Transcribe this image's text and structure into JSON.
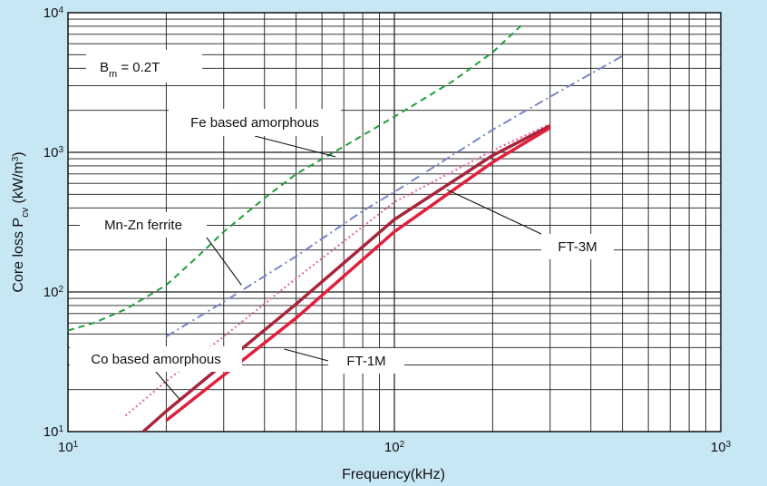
{
  "chart_data": {
    "type": "line",
    "x_scale": "log",
    "y_scale": "log",
    "xlim": [
      10,
      1000
    ],
    "ylim": [
      10,
      10000
    ],
    "grid": true,
    "legend": "none",
    "xlabel": "Frequency(kHz)",
    "ylabel": {
      "main": "Core loss P",
      "sub": "cv",
      "unit_open": " (kW/m",
      "unit_sup": "3",
      "unit_close": ")"
    },
    "x_ticks": [
      {
        "base": "10",
        "exp": "1",
        "value": 10
      },
      {
        "base": "10",
        "exp": "2",
        "value": 100
      },
      {
        "base": "10",
        "exp": "3",
        "value": 1000
      }
    ],
    "y_ticks": [
      {
        "base": "10",
        "exp": "1",
        "value": 10
      },
      {
        "base": "10",
        "exp": "2",
        "value": 100
      },
      {
        "base": "10",
        "exp": "3",
        "value": 1000
      },
      {
        "base": "10",
        "exp": "4",
        "value": 10000
      }
    ],
    "condition": {
      "main": "B",
      "sub": "m",
      "rest": " = 0.2T"
    },
    "series": [
      {
        "name": "Fe based amorphous",
        "style": "dashed",
        "color": "#1f9e3a",
        "width": 2,
        "points": [
          [
            10,
            53
          ],
          [
            12,
            60
          ],
          [
            15,
            75
          ],
          [
            20,
            112
          ],
          [
            25,
            180
          ],
          [
            30,
            270
          ],
          [
            40,
            470
          ],
          [
            50,
            700
          ],
          [
            70,
            1100
          ],
          [
            100,
            1800
          ],
          [
            150,
            3200
          ],
          [
            200,
            5200
          ],
          [
            250,
            8500
          ]
        ]
      },
      {
        "name": "Mn-Zn ferrite",
        "style": "dashdot",
        "color": "#7b86c6",
        "width": 2,
        "points": [
          [
            20,
            48
          ],
          [
            30,
            85
          ],
          [
            50,
            180
          ],
          [
            80,
            380
          ],
          [
            100,
            520
          ],
          [
            200,
            1450
          ],
          [
            300,
            2500
          ],
          [
            500,
            4900
          ]
        ]
      },
      {
        "name": "Co based amorphous",
        "style": "dotted",
        "color": "#e6609a",
        "width": 2,
        "points": [
          [
            15,
            13
          ],
          [
            20,
            23
          ],
          [
            30,
            48
          ],
          [
            50,
            125
          ],
          [
            100,
            440
          ],
          [
            200,
            1030
          ],
          [
            300,
            1600
          ]
        ]
      },
      {
        "name": "FT-1M",
        "style": "solid",
        "color": "#a8253c",
        "width": 3.5,
        "points": [
          [
            17,
            10
          ],
          [
            20,
            14
          ],
          [
            50,
            82
          ],
          [
            100,
            330
          ],
          [
            200,
            950
          ],
          [
            300,
            1550
          ]
        ]
      },
      {
        "name": "FT-3M",
        "style": "solid",
        "color": "#e0203c",
        "width": 3.5,
        "points": [
          [
            20,
            12
          ],
          [
            50,
            65
          ],
          [
            100,
            270
          ],
          [
            200,
            850
          ],
          [
            300,
            1500
          ]
        ]
      }
    ],
    "annotations": [
      {
        "label": "Fe based amorphous",
        "point": [
          66,
          930
        ]
      },
      {
        "label": "Mn-Zn ferrite",
        "point": [
          34,
          112
        ]
      },
      {
        "label": "FT-3M",
        "point": [
          145,
          540
        ]
      },
      {
        "label": "Co based amorphous",
        "point": [
          22,
          17
        ]
      },
      {
        "label": "FT-1M",
        "point": [
          46,
          39
        ]
      }
    ]
  }
}
